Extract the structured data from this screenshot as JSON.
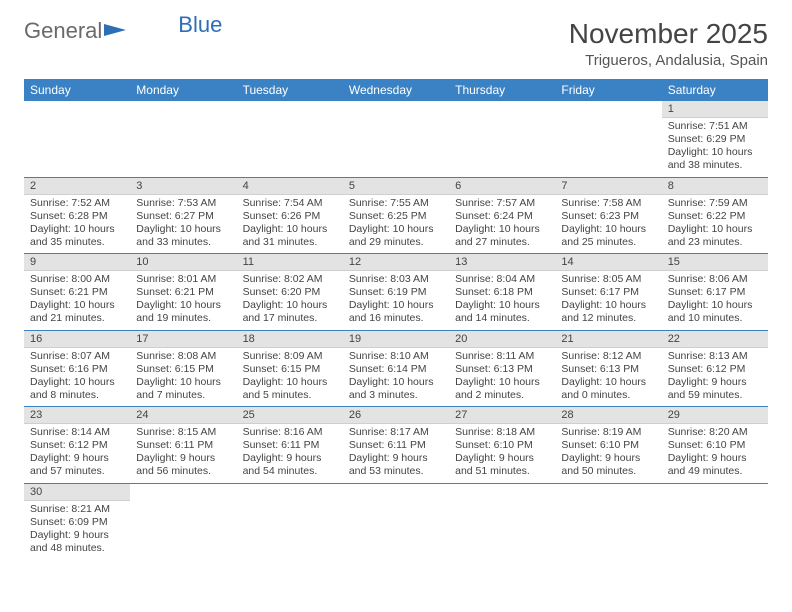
{
  "brand": {
    "part1": "General",
    "part2": "Blue"
  },
  "title": "November 2025",
  "location": "Trigueros, Andalusia, Spain",
  "colors": {
    "header_bg": "#3b82c4",
    "header_text": "#ffffff",
    "daynum_bg": "#e3e3e3",
    "row_border": "#3b82c4",
    "brand_gray": "#6a6a6a",
    "brand_blue": "#2d6fb6",
    "page_bg": "#ffffff",
    "text": "#444444"
  },
  "typography": {
    "title_fontsize": 28,
    "location_fontsize": 15,
    "header_fontsize": 12,
    "daynum_fontsize": 11,
    "body_fontsize": 10.5,
    "font_family": "Arial"
  },
  "weekdays": [
    "Sunday",
    "Monday",
    "Tuesday",
    "Wednesday",
    "Thursday",
    "Friday",
    "Saturday"
  ],
  "weeks": [
    [
      {
        "empty": true
      },
      {
        "empty": true
      },
      {
        "empty": true
      },
      {
        "empty": true
      },
      {
        "empty": true
      },
      {
        "empty": true
      },
      {
        "num": "1",
        "sunrise": "Sunrise: 7:51 AM",
        "sunset": "Sunset: 6:29 PM",
        "daylight": "Daylight: 10 hours and 38 minutes."
      }
    ],
    [
      {
        "num": "2",
        "sunrise": "Sunrise: 7:52 AM",
        "sunset": "Sunset: 6:28 PM",
        "daylight": "Daylight: 10 hours and 35 minutes."
      },
      {
        "num": "3",
        "sunrise": "Sunrise: 7:53 AM",
        "sunset": "Sunset: 6:27 PM",
        "daylight": "Daylight: 10 hours and 33 minutes."
      },
      {
        "num": "4",
        "sunrise": "Sunrise: 7:54 AM",
        "sunset": "Sunset: 6:26 PM",
        "daylight": "Daylight: 10 hours and 31 minutes."
      },
      {
        "num": "5",
        "sunrise": "Sunrise: 7:55 AM",
        "sunset": "Sunset: 6:25 PM",
        "daylight": "Daylight: 10 hours and 29 minutes."
      },
      {
        "num": "6",
        "sunrise": "Sunrise: 7:57 AM",
        "sunset": "Sunset: 6:24 PM",
        "daylight": "Daylight: 10 hours and 27 minutes."
      },
      {
        "num": "7",
        "sunrise": "Sunrise: 7:58 AM",
        "sunset": "Sunset: 6:23 PM",
        "daylight": "Daylight: 10 hours and 25 minutes."
      },
      {
        "num": "8",
        "sunrise": "Sunrise: 7:59 AM",
        "sunset": "Sunset: 6:22 PM",
        "daylight": "Daylight: 10 hours and 23 minutes."
      }
    ],
    [
      {
        "num": "9",
        "sunrise": "Sunrise: 8:00 AM",
        "sunset": "Sunset: 6:21 PM",
        "daylight": "Daylight: 10 hours and 21 minutes."
      },
      {
        "num": "10",
        "sunrise": "Sunrise: 8:01 AM",
        "sunset": "Sunset: 6:21 PM",
        "daylight": "Daylight: 10 hours and 19 minutes."
      },
      {
        "num": "11",
        "sunrise": "Sunrise: 8:02 AM",
        "sunset": "Sunset: 6:20 PM",
        "daylight": "Daylight: 10 hours and 17 minutes."
      },
      {
        "num": "12",
        "sunrise": "Sunrise: 8:03 AM",
        "sunset": "Sunset: 6:19 PM",
        "daylight": "Daylight: 10 hours and 16 minutes."
      },
      {
        "num": "13",
        "sunrise": "Sunrise: 8:04 AM",
        "sunset": "Sunset: 6:18 PM",
        "daylight": "Daylight: 10 hours and 14 minutes."
      },
      {
        "num": "14",
        "sunrise": "Sunrise: 8:05 AM",
        "sunset": "Sunset: 6:17 PM",
        "daylight": "Daylight: 10 hours and 12 minutes."
      },
      {
        "num": "15",
        "sunrise": "Sunrise: 8:06 AM",
        "sunset": "Sunset: 6:17 PM",
        "daylight": "Daylight: 10 hours and 10 minutes."
      }
    ],
    [
      {
        "num": "16",
        "sunrise": "Sunrise: 8:07 AM",
        "sunset": "Sunset: 6:16 PM",
        "daylight": "Daylight: 10 hours and 8 minutes."
      },
      {
        "num": "17",
        "sunrise": "Sunrise: 8:08 AM",
        "sunset": "Sunset: 6:15 PM",
        "daylight": "Daylight: 10 hours and 7 minutes."
      },
      {
        "num": "18",
        "sunrise": "Sunrise: 8:09 AM",
        "sunset": "Sunset: 6:15 PM",
        "daylight": "Daylight: 10 hours and 5 minutes."
      },
      {
        "num": "19",
        "sunrise": "Sunrise: 8:10 AM",
        "sunset": "Sunset: 6:14 PM",
        "daylight": "Daylight: 10 hours and 3 minutes."
      },
      {
        "num": "20",
        "sunrise": "Sunrise: 8:11 AM",
        "sunset": "Sunset: 6:13 PM",
        "daylight": "Daylight: 10 hours and 2 minutes."
      },
      {
        "num": "21",
        "sunrise": "Sunrise: 8:12 AM",
        "sunset": "Sunset: 6:13 PM",
        "daylight": "Daylight: 10 hours and 0 minutes."
      },
      {
        "num": "22",
        "sunrise": "Sunrise: 8:13 AM",
        "sunset": "Sunset: 6:12 PM",
        "daylight": "Daylight: 9 hours and 59 minutes."
      }
    ],
    [
      {
        "num": "23",
        "sunrise": "Sunrise: 8:14 AM",
        "sunset": "Sunset: 6:12 PM",
        "daylight": "Daylight: 9 hours and 57 minutes."
      },
      {
        "num": "24",
        "sunrise": "Sunrise: 8:15 AM",
        "sunset": "Sunset: 6:11 PM",
        "daylight": "Daylight: 9 hours and 56 minutes."
      },
      {
        "num": "25",
        "sunrise": "Sunrise: 8:16 AM",
        "sunset": "Sunset: 6:11 PM",
        "daylight": "Daylight: 9 hours and 54 minutes."
      },
      {
        "num": "26",
        "sunrise": "Sunrise: 8:17 AM",
        "sunset": "Sunset: 6:11 PM",
        "daylight": "Daylight: 9 hours and 53 minutes."
      },
      {
        "num": "27",
        "sunrise": "Sunrise: 8:18 AM",
        "sunset": "Sunset: 6:10 PM",
        "daylight": "Daylight: 9 hours and 51 minutes."
      },
      {
        "num": "28",
        "sunrise": "Sunrise: 8:19 AM",
        "sunset": "Sunset: 6:10 PM",
        "daylight": "Daylight: 9 hours and 50 minutes."
      },
      {
        "num": "29",
        "sunrise": "Sunrise: 8:20 AM",
        "sunset": "Sunset: 6:10 PM",
        "daylight": "Daylight: 9 hours and 49 minutes."
      }
    ],
    [
      {
        "num": "30",
        "sunrise": "Sunrise: 8:21 AM",
        "sunset": "Sunset: 6:09 PM",
        "daylight": "Daylight: 9 hours and 48 minutes."
      },
      {
        "empty": true
      },
      {
        "empty": true
      },
      {
        "empty": true
      },
      {
        "empty": true
      },
      {
        "empty": true
      },
      {
        "empty": true
      }
    ]
  ]
}
